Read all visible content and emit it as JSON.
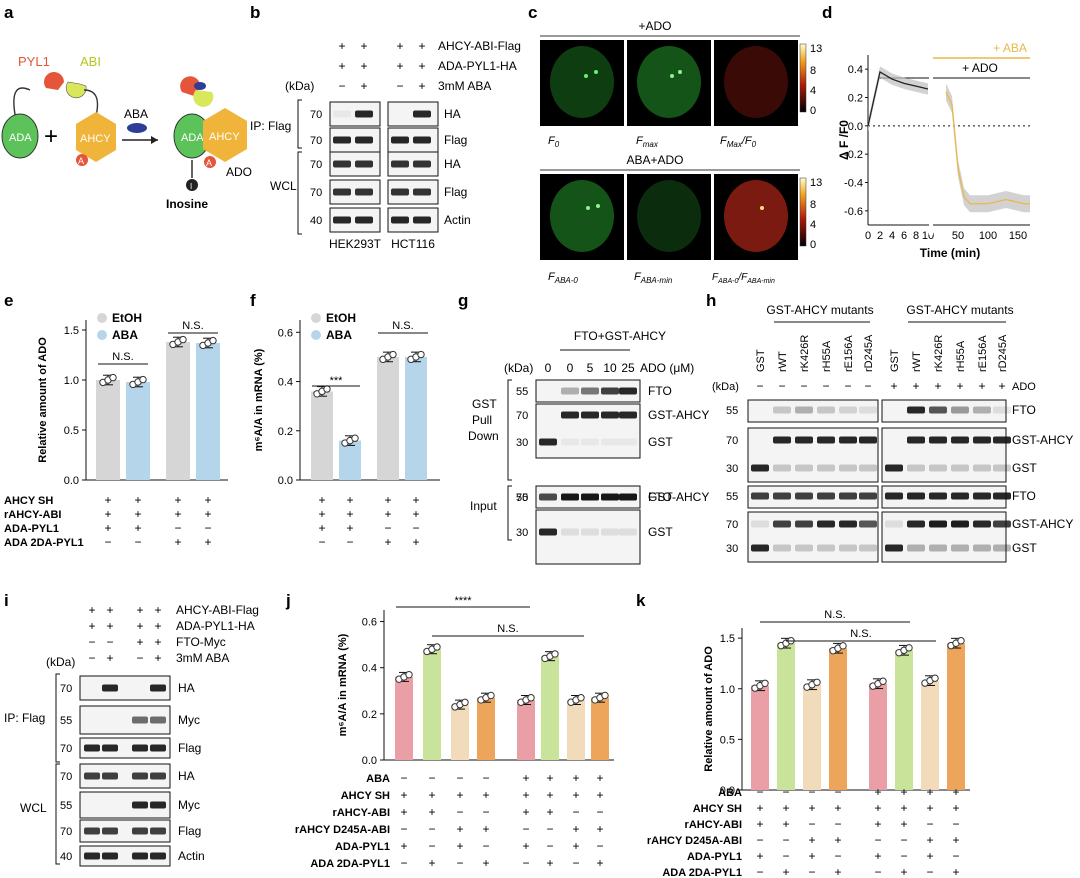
{
  "panels": {
    "a": "a",
    "b": "b",
    "c": "c",
    "d": "d",
    "e": "e",
    "f": "f",
    "g": "g",
    "h": "h",
    "i": "i",
    "j": "j",
    "k": "k"
  },
  "a": {
    "pyl1": "PYL1",
    "abi": "ABI",
    "aba": "ABA",
    "ada": "ADA",
    "ahcy": "AHCY",
    "a_badge": "A",
    "ado": "ADO",
    "inosine": "Inosine",
    "plus": "+",
    "i_badge": "I"
  },
  "b": {
    "rows": [
      {
        "label": "AHCY-ABI-Flag",
        "signs": [
          "+",
          "+",
          "+",
          "+"
        ]
      },
      {
        "label": "ADA-PYL1-HA",
        "signs": [
          "+",
          "+",
          "+",
          "+"
        ]
      },
      {
        "label": "3mM ABA",
        "signs": [
          "−",
          "+",
          "−",
          "+"
        ]
      }
    ],
    "kda": "(kDa)",
    "ip": "IP: Flag",
    "wcl": "WCL",
    "blots": [
      "HA",
      "Flag",
      "HA",
      "Flag",
      "Actin"
    ],
    "markers": [
      "70",
      "70",
      "70",
      "70",
      "40"
    ],
    "cells": [
      "HEK293T",
      "HCT116"
    ]
  },
  "c": {
    "top": "+ADO",
    "bottom": "ABA+ADO",
    "scale_max": "13",
    "scale_mid": "8",
    "scale_low": "4",
    "scale_min": "0",
    "labels_top": [
      "F",
      "F",
      "F",
      "/F"
    ],
    "subs_top": [
      "0",
      "max",
      "Max",
      "0"
    ],
    "labels_bottom": [
      "F",
      "F",
      "F",
      "/F"
    ],
    "subs_bottom": [
      "ABA-0",
      "ABA-min",
      "ABA-0",
      "ABA-min"
    ]
  },
  "d": {
    "aba": "+ ABA",
    "ado": "+ ADO",
    "ylabel": "Δ F /F0",
    "xlabel": "Time (min)",
    "yticks": [
      "0.4",
      "0.2",
      "0.0",
      "-0.2",
      "-0.4",
      "-0.6"
    ],
    "xticks1": [
      "0",
      "2",
      "4",
      "6",
      "8",
      "10"
    ],
    "xticks2": [
      "50",
      "100",
      "150"
    ]
  },
  "e": {
    "legend": [
      "EtOH",
      "ABA"
    ],
    "ylabel": "Relative amount of ADO",
    "yticks": [
      "0.0",
      "0.5",
      "1.0",
      "1.5"
    ],
    "ns": [
      "N.S.",
      "N.S."
    ],
    "rows": [
      {
        "label": "AHCY SH",
        "signs": [
          "+",
          "+",
          "+",
          "+"
        ]
      },
      {
        "label": "rAHCY-ABI",
        "signs": [
          "+",
          "+",
          "+",
          "+"
        ]
      },
      {
        "label": "ADA-PYL1",
        "signs": [
          "+",
          "+",
          "−",
          "−"
        ]
      },
      {
        "label": "ADA 2DA-PYL1",
        "signs": [
          "−",
          "−",
          "+",
          "+"
        ]
      }
    ]
  },
  "f": {
    "legend": [
      "EtOH",
      "ABA"
    ],
    "ylabel": "m⁶A/A in mRNA (%)",
    "yticks": [
      "0.0",
      "0.2",
      "0.4",
      "0.6"
    ],
    "sig": [
      "***",
      "N.S."
    ],
    "signs": [
      [
        "+",
        "+",
        "+",
        "+"
      ],
      [
        "+",
        "+",
        "+",
        "+"
      ],
      [
        "+",
        "+",
        "−",
        "−"
      ],
      [
        "−",
        "−",
        "+",
        "+"
      ]
    ]
  },
  "g": {
    "header": "FTO+GST-AHCY",
    "kda": "(kDa)",
    "conc": [
      "0",
      "0",
      "5",
      "10",
      "25"
    ],
    "conc_label": "ADO (μM)",
    "gst_pd": "GST Pull Down",
    "input": "Input",
    "blots": [
      "FTO",
      "GST-AHCY",
      "GST",
      "FTO",
      "GST-AHCY",
      "GST"
    ],
    "markers": [
      "55",
      "70",
      "30",
      "55",
      "70",
      "30"
    ]
  },
  "h": {
    "header": "GST-AHCY mutants",
    "kda": "(kDa)",
    "ado": "ADO",
    "lanes": [
      "GST",
      "rWT",
      "rK426R",
      "rH55A",
      "rE156A",
      "rD245A"
    ],
    "ado_signs": [
      "+",
      "+",
      "+",
      "+",
      "+",
      "+"
    ],
    "blots": [
      "FTO",
      "GST-AHCY",
      "GST",
      "FTO",
      "GST-AHCY",
      "GST"
    ],
    "markers": [
      "55",
      "70",
      "30",
      "55",
      "70",
      "30"
    ]
  },
  "i": {
    "rows": [
      {
        "label": "AHCY-ABI-Flag",
        "signs": [
          "+",
          "+",
          "+",
          "+"
        ]
      },
      {
        "label": "ADA-PYL1-HA",
        "signs": [
          "+",
          "+",
          "+",
          "+"
        ]
      },
      {
        "label": "FTO-Myc",
        "signs": [
          "−",
          "−",
          "+",
          "+"
        ]
      },
      {
        "label": "3mM ABA",
        "signs": [
          "−",
          "+",
          "−",
          "+"
        ]
      }
    ],
    "kda": "(kDa)",
    "ip": "IP: Flag",
    "wcl": "WCL",
    "blots": [
      "HA",
      "Myc",
      "Flag",
      "HA",
      "Myc",
      "Flag",
      "Actin"
    ],
    "markers": [
      "70",
      "55",
      "70",
      "70",
      "55",
      "70",
      "40"
    ]
  },
  "j": {
    "ylabel": "m⁶A/A in mRNA (%)",
    "yticks": [
      "0.0",
      "0.2",
      "0.4",
      "0.6"
    ],
    "sig": [
      "****",
      "N.S."
    ]
  },
  "k": {
    "ylabel": "Relative amount of ADO",
    "yticks": [
      "0.0",
      "0.5",
      "1.0",
      "1.5"
    ],
    "ns": [
      "N.S.",
      "N.S."
    ]
  },
  "jk_rows": [
    {
      "label": "ABA",
      "signs": [
        "−",
        "−",
        "−",
        "−",
        "+",
        "+",
        "+",
        "+"
      ]
    },
    {
      "label": "AHCY SH",
      "signs": [
        "+",
        "+",
        "+",
        "+",
        "+",
        "+",
        "+",
        "+"
      ]
    },
    {
      "label": "rAHCY-ABI",
      "signs": [
        "+",
        "+",
        "−",
        "−",
        "+",
        "+",
        "−",
        "−"
      ]
    },
    {
      "label": "rAHCY D245A-ABI",
      "signs": [
        "−",
        "−",
        "+",
        "+",
        "−",
        "−",
        "+",
        "+"
      ]
    },
    {
      "label": "ADA-PYL1",
      "signs": [
        "+",
        "−",
        "+",
        "−",
        "+",
        "−",
        "+",
        "−"
      ]
    },
    {
      "label": "ADA 2DA-PYL1",
      "signs": [
        "−",
        "+",
        "−",
        "+",
        "−",
        "+",
        "−",
        "+"
      ]
    }
  ],
  "colors": {
    "grey": "#d6d6d6",
    "blue": "#b5d6ea",
    "pink": "#ea9fa6",
    "green": "#c9e39a",
    "beige": "#f2dbba",
    "orange": "#eda55c",
    "ada": "#5cc35a",
    "ahcy": "#f0b43a",
    "pyl1": "#e4553a",
    "abi": "#d8e85a",
    "aba": "#2d3d9a"
  },
  "chart_data": [
    {
      "type": "line",
      "panel": "d",
      "x": [
        0,
        2,
        4,
        6,
        8,
        10,
        30,
        40,
        50,
        60,
        70,
        100,
        130,
        160,
        170
      ],
      "series": [
        {
          "values": [
            0,
            0.38,
            0.33,
            0.3,
            0.28,
            0.26,
            0.24,
            0.15,
            -0.3,
            -0.5,
            -0.55,
            -0.55,
            -0.52,
            -0.55,
            -0.55
          ]
        }
      ],
      "xlabel": "Time (min)",
      "ylabel": "Δ F /F0",
      "ylim": [
        -0.7,
        0.5
      ]
    },
    {
      "type": "bar",
      "panel": "e",
      "categories": [
        "ADA-PYL1",
        "ADA 2DA-PYL1"
      ],
      "series": [
        {
          "name": "EtOH",
          "values": [
            1.0,
            1.38
          ]
        },
        {
          "name": "ABA",
          "values": [
            0.98,
            1.37
          ]
        }
      ],
      "ylabel": "Relative amount of ADO",
      "ylim": [
        0,
        1.6
      ]
    },
    {
      "type": "bar",
      "panel": "f",
      "categories": [
        "ADA-PYL1",
        "ADA 2DA-PYL1"
      ],
      "series": [
        {
          "name": "EtOH",
          "values": [
            0.36,
            0.5
          ]
        },
        {
          "name": "ABA",
          "values": [
            0.16,
            0.5
          ]
        }
      ],
      "ylabel": "m⁶A/A in mRNA (%)",
      "ylim": [
        0,
        0.65
      ]
    },
    {
      "type": "bar",
      "panel": "j",
      "values": [
        0.36,
        0.48,
        0.24,
        0.27,
        0.26,
        0.45,
        0.26,
        0.27
      ],
      "ylabel": "m⁶A/A in mRNA (%)",
      "ylim": [
        0,
        0.65
      ]
    },
    {
      "type": "bar",
      "panel": "k",
      "values": [
        1.03,
        1.45,
        1.04,
        1.4,
        1.05,
        1.38,
        1.08,
        1.45
      ],
      "ylabel": "Relative amount of ADO",
      "ylim": [
        0,
        1.6
      ]
    }
  ]
}
